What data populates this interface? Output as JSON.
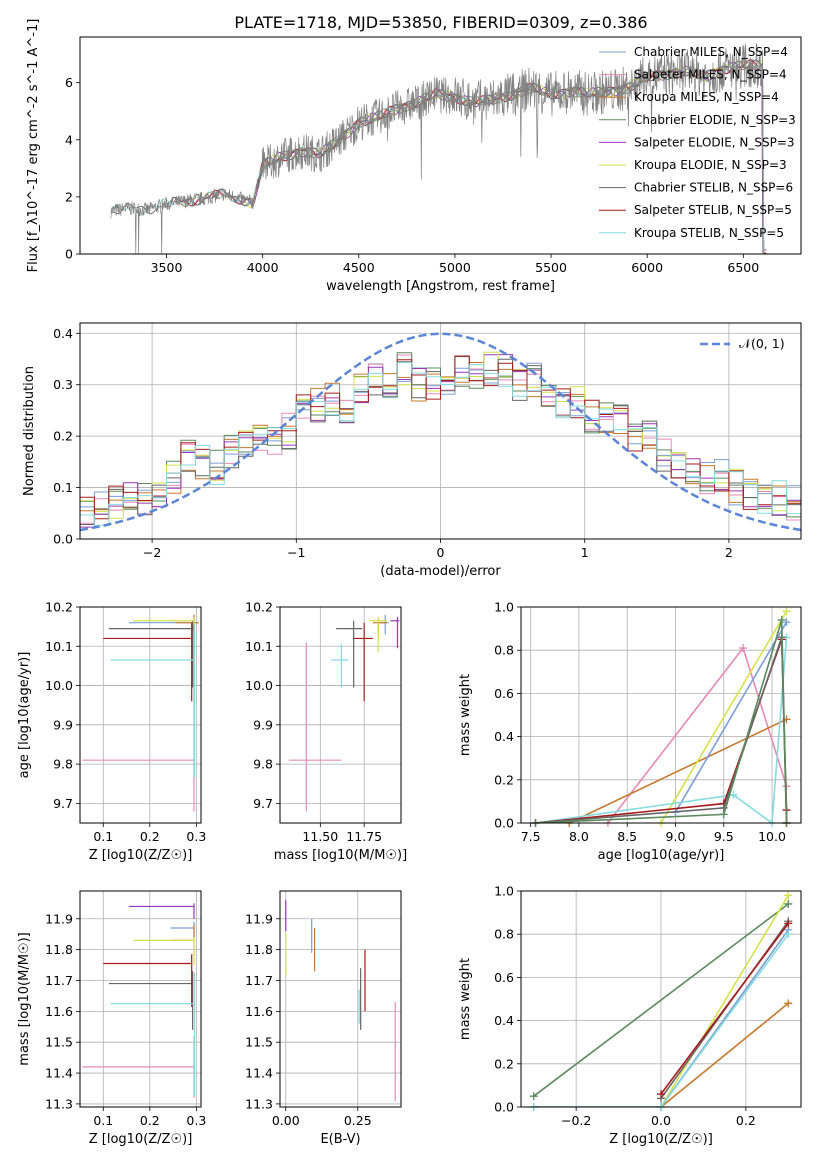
{
  "title": "PLATE=1718, MJD=53850, FIBERID=0309, z=0.386",
  "colors": [
    "#7b9fd6",
    "#e889b8",
    "#c8792e",
    "#5b8a5e",
    "#9b37b8",
    "#d4e24a",
    "#666666",
    "#a61c1c",
    "#86dbe0"
  ],
  "chart_data": [
    {
      "id": "spectrum",
      "type": "line",
      "xlabel": "wavelength [Angstrom, rest frame]",
      "ylabel": "Flux [f_λ10^-17 erg cm^-2 s^-1 A^-1]",
      "xlim": [
        3050,
        6800
      ],
      "ylim": [
        0,
        7.6
      ],
      "xticks": [
        3500,
        4000,
        4500,
        5000,
        5500,
        6000,
        6500
      ],
      "yticks": [
        0,
        2,
        4,
        6
      ],
      "grid": false,
      "legend_position": "right",
      "legend": [
        {
          "label": "Chabrier MILES, N_SSP=4",
          "color": "#7b9fd6"
        },
        {
          "label": "Salpeter MILES, N_SSP=4",
          "color": "#e889b8"
        },
        {
          "label": "Kroupa MILES, N_SSP=4",
          "color": "#c8792e"
        },
        {
          "label": "Chabrier ELODIE, N_SSP=3",
          "color": "#5b8a5e"
        },
        {
          "label": "Salpeter ELODIE, N_SSP=3",
          "color": "#9b37b8"
        },
        {
          "label": "Kroupa ELODIE, N_SSP=3",
          "color": "#d4e24a"
        },
        {
          "label": "Chabrier STELIB, N_SSP=6",
          "color": "#666666"
        },
        {
          "label": "Salpeter STELIB, N_SSP=5",
          "color": "#a61c1c"
        },
        {
          "label": "Kroupa STELIB, N_SSP=5",
          "color": "#86dbe0"
        }
      ],
      "continuum": [
        [
          3200,
          0.0
        ],
        [
          3210,
          1.5
        ],
        [
          3300,
          1.6
        ],
        [
          3400,
          1.55
        ],
        [
          3500,
          1.75
        ],
        [
          3600,
          1.85
        ],
        [
          3700,
          1.95
        ],
        [
          3800,
          2.1
        ],
        [
          3900,
          1.9
        ],
        [
          3950,
          1.8
        ],
        [
          4000,
          3.1
        ],
        [
          4100,
          3.4
        ],
        [
          4200,
          3.6
        ],
        [
          4300,
          3.5
        ],
        [
          4400,
          4.0
        ],
        [
          4500,
          4.6
        ],
        [
          4600,
          4.8
        ],
        [
          4700,
          5.1
        ],
        [
          4800,
          5.3
        ],
        [
          4900,
          5.6
        ],
        [
          5000,
          5.5
        ],
        [
          5100,
          5.3
        ],
        [
          5200,
          5.4
        ],
        [
          5300,
          5.6
        ],
        [
          5400,
          5.8
        ],
        [
          5500,
          5.6
        ],
        [
          5600,
          5.7
        ],
        [
          5700,
          5.6
        ],
        [
          5800,
          5.7
        ],
        [
          5900,
          5.8
        ],
        [
          6000,
          6.2
        ],
        [
          6100,
          6.3
        ],
        [
          6200,
          6.4
        ],
        [
          6300,
          6.2
        ],
        [
          6400,
          6.5
        ],
        [
          6500,
          6.6
        ],
        [
          6600,
          6.6
        ]
      ]
    },
    {
      "id": "residuals",
      "type": "line",
      "xlabel": "(data-model)/error",
      "ylabel": "Normed distribution",
      "xlim": [
        -2.5,
        2.5
      ],
      "ylim": [
        0,
        0.42
      ],
      "xticks": [
        -2,
        -1,
        0,
        1,
        2
      ],
      "yticks": [
        0.0,
        0.1,
        0.2,
        0.3,
        0.4
      ],
      "grid": true,
      "legend_position": "top-right",
      "legend": [
        {
          "label": "𝒩(0, 1)",
          "color": "#5b86d8"
        }
      ],
      "bin_centers": [
        -2.45,
        -2.35,
        -2.25,
        -2.15,
        -2.05,
        -1.95,
        -1.85,
        -1.75,
        -1.65,
        -1.55,
        -1.45,
        -1.35,
        -1.25,
        -1.15,
        -1.05,
        -0.95,
        -0.85,
        -0.75,
        -0.65,
        -0.55,
        -0.45,
        -0.35,
        -0.25,
        -0.15,
        -0.05,
        0.05,
        0.15,
        0.25,
        0.35,
        0.45,
        0.55,
        0.65,
        0.75,
        0.85,
        0.95,
        1.05,
        1.15,
        1.25,
        1.35,
        1.45,
        1.55,
        1.65,
        1.75,
        1.85,
        1.95,
        2.05,
        2.15,
        2.25,
        2.35,
        2.45
      ],
      "histogram": [
        0.05,
        0.06,
        0.07,
        0.08,
        0.08,
        0.09,
        0.12,
        0.16,
        0.15,
        0.14,
        0.17,
        0.18,
        0.2,
        0.19,
        0.21,
        0.25,
        0.26,
        0.27,
        0.25,
        0.3,
        0.31,
        0.29,
        0.33,
        0.3,
        0.3,
        0.31,
        0.33,
        0.31,
        0.33,
        0.33,
        0.3,
        0.31,
        0.29,
        0.27,
        0.27,
        0.24,
        0.24,
        0.23,
        0.19,
        0.2,
        0.16,
        0.15,
        0.14,
        0.12,
        0.12,
        0.1,
        0.09,
        0.08,
        0.08,
        0.07
      ]
    },
    {
      "id": "age-vs-Z",
      "type": "scatter",
      "xlabel": "Z [log10(Z/Z☉)]",
      "ylabel": "age  [log10(age/yr)]",
      "xlim": [
        0.05,
        0.31
      ],
      "ylim": [
        9.65,
        10.2
      ],
      "xticks": [
        0.1,
        0.2,
        0.3
      ],
      "yticks": [
        9.7,
        9.8,
        9.9,
        10.0,
        10.1,
        10.2
      ],
      "grid": true,
      "points": [
        {
          "x": 0.295,
          "y": 10.16,
          "xerr": [
            0.14,
            0.01
          ],
          "yerr": [
            0.05,
            0.02
          ],
          "color": "#7b9fd6"
        },
        {
          "x": 0.295,
          "y": 9.81,
          "xerr": [
            0.24,
            0.0
          ],
          "yerr": [
            0.13,
            0.36
          ],
          "color": "#e889b8"
        },
        {
          "x": 0.295,
          "y": 10.16,
          "xerr": [
            0.04,
            0.01
          ],
          "yerr": [
            0.02,
            0.02
          ],
          "color": "#c8792e"
        },
        {
          "x": 0.292,
          "y": 10.145,
          "xerr": [
            0.18,
            0.0
          ],
          "yerr": [
            0.15,
            0.02
          ],
          "color": "#666666"
        },
        {
          "x": 0.29,
          "y": 10.12,
          "xerr": [
            0.19,
            0.0
          ],
          "yerr": [
            0.16,
            0.04
          ],
          "color": "#a61c1c"
        },
        {
          "x": 0.296,
          "y": 10.065,
          "xerr": [
            0.18,
            0.0
          ],
          "yerr": [
            0.3,
            0.1
          ],
          "color": "#86dbe0"
        },
        {
          "x": 0.295,
          "y": 10.165,
          "xerr": [
            0.13,
            0.0
          ],
          "yerr": [
            0.01,
            0.01
          ],
          "color": "#d4e24a"
        }
      ]
    },
    {
      "id": "age-vs-mass",
      "type": "scatter",
      "xlabel": "mass [log10(M/M☉)]",
      "ylabel": "",
      "xlim": [
        11.27,
        11.96
      ],
      "ylim": [
        9.65,
        10.2
      ],
      "xticks": [
        11.5,
        11.75
      ],
      "yticks": [
        9.7,
        9.8,
        9.9,
        10.0,
        10.1,
        10.2
      ],
      "grid": true,
      "points": [
        {
          "x": 11.87,
          "y": 10.16,
          "xerr": [
            0.04,
            0.02
          ],
          "yerr": [
            0.03,
            0.02
          ],
          "color": "#7b9fd6"
        },
        {
          "x": 11.42,
          "y": 9.81,
          "xerr": [
            0.1,
            0.2
          ],
          "yerr": [
            0.13,
            0.3
          ],
          "color": "#e889b8"
        },
        {
          "x": 11.83,
          "y": 10.16,
          "xerr": [
            0.03,
            0.05
          ],
          "yerr": [
            0.03,
            0.01
          ],
          "color": "#c8792e"
        },
        {
          "x": 11.69,
          "y": 10.145,
          "xerr": [
            0.1,
            0.05
          ],
          "yerr": [
            0.15,
            0.02
          ],
          "color": "#666666"
        },
        {
          "x": 11.75,
          "y": 10.12,
          "xerr": [
            0.06,
            0.05
          ],
          "yerr": [
            0.16,
            0.04
          ],
          "color": "#a61c1c"
        },
        {
          "x": 11.62,
          "y": 10.065,
          "xerr": [
            0.06,
            0.04
          ],
          "yerr": [
            0.07,
            0.04
          ],
          "color": "#86dbe0"
        },
        {
          "x": 11.83,
          "y": 10.165,
          "xerr": [
            0.05,
            0.05
          ],
          "yerr": [
            0.08,
            0.01
          ],
          "color": "#d4e24a"
        },
        {
          "x": 11.94,
          "y": 10.165,
          "xerr": [
            0.04,
            0.01
          ],
          "yerr": [
            0.07,
            0.01
          ],
          "color": "#9b37b8"
        }
      ]
    },
    {
      "id": "weight-vs-age",
      "type": "line",
      "xlabel": "age  [log10(age/yr)]",
      "ylabel": "mass weight",
      "xlim": [
        7.4,
        10.3
      ],
      "ylim": [
        0,
        1.0
      ],
      "xticks": [
        7.5,
        8.0,
        8.5,
        9.0,
        9.5,
        10.0
      ],
      "yticks": [
        0.0,
        0.2,
        0.4,
        0.6,
        0.8,
        1.0
      ],
      "grid": true,
      "series": [
        {
          "color": "#e889b8",
          "x": [
            8.3,
            9.7,
            10.15
          ],
          "y": [
            0.0,
            0.81,
            0.17
          ]
        },
        {
          "color": "#c8792e",
          "x": [
            7.9,
            10.15
          ],
          "y": [
            0.0,
            0.48
          ]
        },
        {
          "color": "#d4e24a",
          "x": [
            8.85,
            10.15
          ],
          "y": [
            0.0,
            0.98
          ]
        },
        {
          "color": "#7b9fd6",
          "x": [
            9.0,
            10.15
          ],
          "y": [
            0.05,
            0.93
          ]
        },
        {
          "color": "#86dbe0",
          "x": [
            7.55,
            9.6,
            10.0,
            10.15
          ],
          "y": [
            0.0,
            0.13,
            0.0,
            0.86
          ]
        },
        {
          "color": "#a61c1c",
          "x": [
            7.55,
            9.5,
            10.1,
            10.15,
            10.15
          ],
          "y": [
            0.0,
            0.09,
            0.85,
            0.06,
            0.0
          ]
        },
        {
          "color": "#666666",
          "x": [
            7.55,
            9.5,
            10.1,
            10.15
          ],
          "y": [
            0.0,
            0.07,
            0.86,
            0.0
          ]
        },
        {
          "color": "#5b8a5e",
          "x": [
            7.55,
            9.5,
            10.1,
            10.15
          ],
          "y": [
            0.0,
            0.04,
            0.94,
            0.0
          ]
        }
      ]
    },
    {
      "id": "mass-vs-Z",
      "type": "scatter",
      "xlabel": "Z [log10(Z/Z☉)]",
      "ylabel": "mass [log10(M/M☉)]",
      "xlim": [
        0.05,
        0.31
      ],
      "ylim": [
        11.29,
        11.99
      ],
      "xticks": [
        0.1,
        0.2,
        0.3
      ],
      "yticks": [
        11.3,
        11.4,
        11.5,
        11.6,
        11.7,
        11.8,
        11.9
      ],
      "grid": true,
      "points": [
        {
          "x": 0.295,
          "y": 11.87,
          "xerr": [
            0.05,
            0.0
          ],
          "yerr": [
            0.03,
            0.02
          ],
          "color": "#7b9fd6"
        },
        {
          "x": 0.295,
          "y": 11.42,
          "xerr": [
            0.24,
            0.0
          ],
          "yerr": [
            0.1,
            0.1
          ],
          "color": "#e889b8"
        },
        {
          "x": 0.295,
          "y": 11.83,
          "xerr": [
            0.05,
            0.0
          ],
          "yerr": [
            0.05,
            0.05
          ],
          "color": "#c8792e"
        },
        {
          "x": 0.292,
          "y": 11.69,
          "xerr": [
            0.18,
            0.0
          ],
          "yerr": [
            0.15,
            0.04
          ],
          "color": "#666666"
        },
        {
          "x": 0.29,
          "y": 11.755,
          "xerr": [
            0.19,
            0.0
          ],
          "yerr": [
            0.14,
            0.03
          ],
          "color": "#a61c1c"
        },
        {
          "x": 0.296,
          "y": 11.625,
          "xerr": [
            0.18,
            0.0
          ],
          "yerr": [
            0.3,
            0.1
          ],
          "color": "#86dbe0"
        },
        {
          "x": 0.295,
          "y": 11.83,
          "xerr": [
            0.13,
            0.0
          ],
          "yerr": [
            0.08,
            0.01
          ],
          "color": "#d4e24a"
        },
        {
          "x": 0.295,
          "y": 11.94,
          "xerr": [
            0.14,
            0.0
          ],
          "yerr": [
            0.04,
            0.01
          ],
          "color": "#9b37b8"
        }
      ]
    },
    {
      "id": "mass-vs-EBV",
      "type": "scatter",
      "xlabel": "E(B-V)",
      "ylabel": "",
      "xlim": [
        -0.02,
        0.4
      ],
      "ylim": [
        11.29,
        11.99
      ],
      "xticks": [
        0.0,
        0.25
      ],
      "yticks": [
        11.3,
        11.4,
        11.5,
        11.6,
        11.7,
        11.8,
        11.9
      ],
      "grid": true,
      "points": [
        {
          "x": 0.0,
          "y": 11.78,
          "xerr": [
            0.0,
            0.0
          ],
          "yerr": [
            0.06,
            0.07
          ],
          "color": "#d4e24a"
        },
        {
          "x": 0.0,
          "y": 11.91,
          "xerr": [
            0.0,
            0.0
          ],
          "yerr": [
            0.05,
            0.05
          ],
          "color": "#9b37b8"
        },
        {
          "x": 0.09,
          "y": 11.83,
          "xerr": [
            0.0,
            0.0
          ],
          "yerr": [
            0.04,
            0.07
          ],
          "color": "#7b9fd6"
        },
        {
          "x": 0.1,
          "y": 11.8,
          "xerr": [
            0.0,
            0.0
          ],
          "yerr": [
            0.07,
            0.07
          ],
          "color": "#c8792e"
        },
        {
          "x": 0.26,
          "y": 11.64,
          "xerr": [
            0.0,
            0.0
          ],
          "yerr": [
            0.1,
            0.1
          ],
          "color": "#666666"
        },
        {
          "x": 0.255,
          "y": 11.61,
          "xerr": [
            0.0,
            0.0
          ],
          "yerr": [
            0.05,
            0.06
          ],
          "color": "#86dbe0"
        },
        {
          "x": 0.275,
          "y": 11.7,
          "xerr": [
            0.0,
            0.0
          ],
          "yerr": [
            0.1,
            0.1
          ],
          "color": "#a61c1c"
        },
        {
          "x": 0.38,
          "y": 11.47,
          "xerr": [
            0.0,
            0.0
          ],
          "yerr": [
            0.16,
            0.16
          ],
          "color": "#e889b8"
        }
      ]
    },
    {
      "id": "weight-vs-Z",
      "type": "line",
      "xlabel": "Z [log10(Z/Z☉)]",
      "ylabel": "mass weight",
      "xlim": [
        -0.33,
        0.33
      ],
      "ylim": [
        0,
        1.0
      ],
      "xticks": [
        -0.2,
        0.0,
        0.2
      ],
      "yticks": [
        0.0,
        0.2,
        0.4,
        0.6,
        0.8,
        1.0
      ],
      "grid": true,
      "series": [
        {
          "color": "#5b8a5e",
          "x": [
            -0.3,
            0.3
          ],
          "y": [
            0.05,
            0.94
          ]
        },
        {
          "color": "#c8792e",
          "x": [
            0.0,
            0.3
          ],
          "y": [
            0.0,
            0.48
          ]
        },
        {
          "color": "#d4e24a",
          "x": [
            -0.3,
            0.0,
            0.3
          ],
          "y": [
            0.0,
            0.0,
            0.98
          ]
        },
        {
          "color": "#7b9fd6",
          "x": [
            -0.3,
            0.0,
            0.3
          ],
          "y": [
            0.0,
            0.0,
            0.82
          ]
        },
        {
          "color": "#86dbe0",
          "x": [
            -0.3,
            0.0,
            0.3
          ],
          "y": [
            0.0,
            0.0,
            0.8
          ]
        },
        {
          "color": "#666666",
          "x": [
            0.0,
            0.3
          ],
          "y": [
            0.04,
            0.86
          ]
        },
        {
          "color": "#a61c1c",
          "x": [
            0.0,
            0.3
          ],
          "y": [
            0.06,
            0.85
          ]
        }
      ]
    }
  ]
}
